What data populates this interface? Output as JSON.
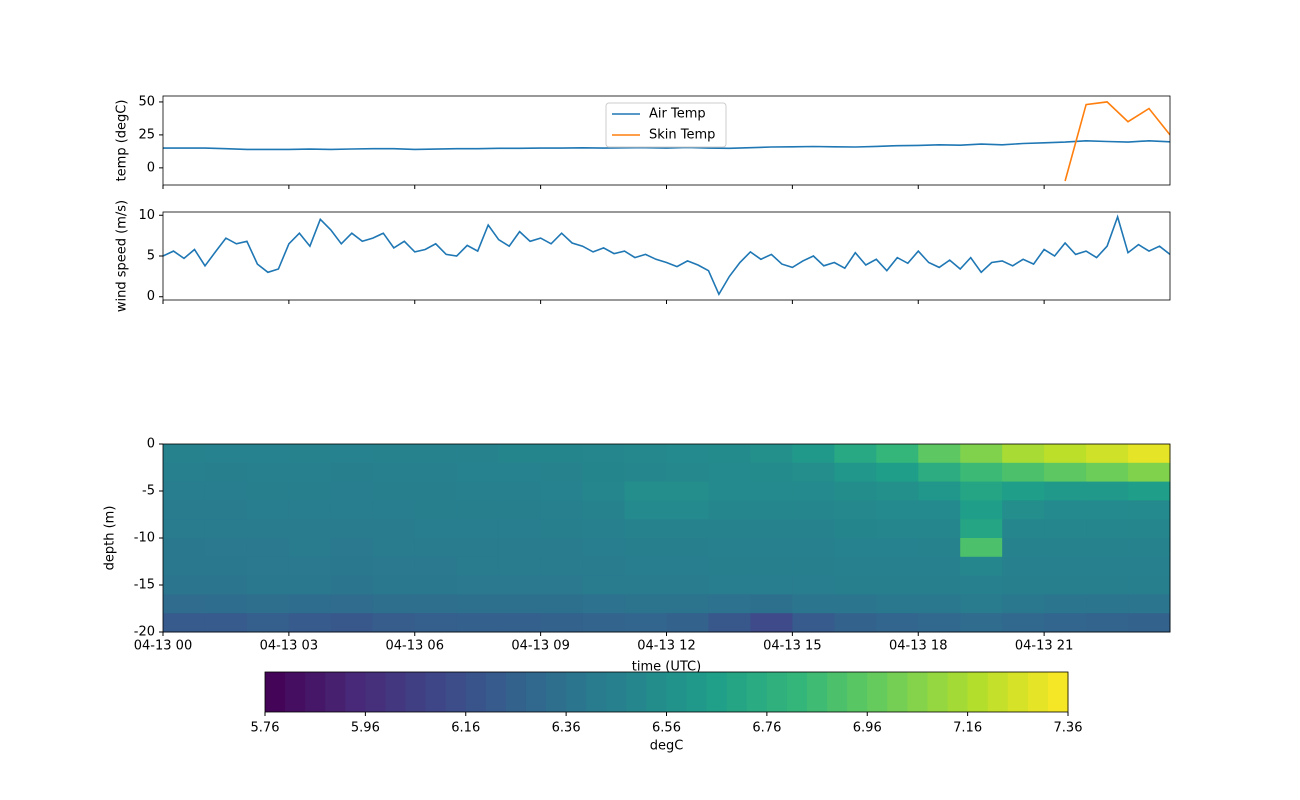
{
  "chart_data": [
    {
      "type": "line",
      "ylabel": "temp (degC)",
      "x": [
        0,
        0.5,
        1,
        1.5,
        2,
        2.5,
        3,
        3.5,
        4,
        4.5,
        5,
        5.5,
        6,
        6.5,
        7,
        7.5,
        8,
        8.5,
        9,
        9.5,
        10,
        10.5,
        11,
        11.5,
        12,
        12.5,
        13,
        13.5,
        14,
        14.5,
        15,
        15.5,
        16,
        16.5,
        17,
        17.5,
        18,
        18.5,
        19,
        19.5,
        20,
        20.5,
        21,
        21.5,
        22,
        22.5,
        23,
        23.5,
        24
      ],
      "series": [
        {
          "name": "Air Temp",
          "color": "#1f77b4",
          "values": [
            15,
            15,
            15,
            14.5,
            14,
            14,
            14,
            14.2,
            14,
            14.3,
            14.5,
            14.5,
            14,
            14.2,
            14.5,
            14.5,
            14.8,
            14.8,
            15,
            15,
            15.2,
            15,
            15.2,
            15.3,
            15,
            15.5,
            15,
            14.8,
            15.3,
            15.8,
            16,
            16.2,
            16,
            15.8,
            16.3,
            16.8,
            17,
            17.5,
            17.2,
            18,
            17.5,
            18.5,
            19,
            19.5,
            20.5,
            20,
            19.5,
            20.5,
            19.8
          ]
        },
        {
          "name": "Skin Temp",
          "color": "#ff7f0e",
          "values": [
            null,
            null,
            null,
            null,
            null,
            null,
            null,
            null,
            null,
            null,
            null,
            null,
            null,
            null,
            null,
            null,
            null,
            null,
            null,
            null,
            null,
            null,
            null,
            null,
            null,
            null,
            null,
            null,
            null,
            null,
            null,
            null,
            null,
            null,
            null,
            null,
            null,
            null,
            null,
            null,
            null,
            null,
            null,
            -10,
            48,
            50,
            35,
            45,
            25
          ]
        }
      ],
      "xlim": [
        0,
        24
      ],
      "xticks": [
        0,
        3,
        6,
        9,
        12,
        15,
        18,
        21
      ],
      "ylim": [
        -13,
        54.5
      ],
      "yticks": [
        0,
        25,
        50
      ],
      "legend": "upper center"
    },
    {
      "type": "line",
      "ylabel": "wind speed (m/s)",
      "x": [
        0,
        0.25,
        0.5,
        0.75,
        1,
        1.25,
        1.5,
        1.75,
        2,
        2.25,
        2.5,
        2.75,
        3,
        3.25,
        3.5,
        3.75,
        4,
        4.25,
        4.5,
        4.75,
        5,
        5.25,
        5.5,
        5.75,
        6,
        6.25,
        6.5,
        6.75,
        7,
        7.25,
        7.5,
        7.75,
        8,
        8.25,
        8.5,
        8.75,
        9,
        9.25,
        9.5,
        9.75,
        10,
        10.25,
        10.5,
        10.75,
        11,
        11.25,
        11.5,
        11.75,
        12,
        12.25,
        12.5,
        12.75,
        13,
        13.25,
        13.5,
        13.75,
        14,
        14.25,
        14.5,
        14.75,
        15,
        15.25,
        15.5,
        15.75,
        16,
        16.25,
        16.5,
        16.75,
        17,
        17.25,
        17.5,
        17.75,
        18,
        18.25,
        18.5,
        18.75,
        19,
        19.25,
        19.5,
        19.75,
        20,
        20.25,
        20.5,
        20.75,
        21,
        21.25,
        21.5,
        21.75,
        22,
        22.25,
        22.5,
        22.75,
        23,
        23.25,
        23.5,
        23.75,
        24
      ],
      "series": [
        {
          "name": "wind speed",
          "color": "#1f77b4",
          "values": [
            5.0,
            5.6,
            4.7,
            5.8,
            3.8,
            5.5,
            7.2,
            6.5,
            6.8,
            4.0,
            3.0,
            3.4,
            6.5,
            7.8,
            6.2,
            9.5,
            8.2,
            6.5,
            7.8,
            6.8,
            7.2,
            7.8,
            6.0,
            6.8,
            5.5,
            5.8,
            6.5,
            5.2,
            5.0,
            6.3,
            5.6,
            8.8,
            7.0,
            6.2,
            8.0,
            6.8,
            7.2,
            6.5,
            7.8,
            6.6,
            6.2,
            5.5,
            6.0,
            5.3,
            5.6,
            4.8,
            5.2,
            4.6,
            4.2,
            3.7,
            4.4,
            3.9,
            3.2,
            0.3,
            2.5,
            4.2,
            5.5,
            4.6,
            5.2,
            4.0,
            3.6,
            4.4,
            5.0,
            3.8,
            4.2,
            3.5,
            5.4,
            3.9,
            4.6,
            3.2,
            4.8,
            4.1,
            5.6,
            4.2,
            3.6,
            4.5,
            3.4,
            4.8,
            3.0,
            4.2,
            4.4,
            3.8,
            4.6,
            4.0,
            5.8,
            5.0,
            6.6,
            5.2,
            5.6,
            4.8,
            6.2,
            9.8,
            5.4,
            6.4,
            5.6,
            6.2,
            5.2
          ]
        }
      ],
      "xlim": [
        0,
        24
      ],
      "xticks": [
        0,
        3,
        6,
        9,
        12,
        15,
        18,
        21
      ],
      "ylim": [
        -0.4,
        10.4
      ],
      "yticks": [
        0,
        5,
        10
      ]
    },
    {
      "type": "heatmap",
      "xlabel": "time (UTC)",
      "ylabel": "depth (m)",
      "x_edges": [
        0,
        1,
        2,
        3,
        4,
        5,
        6,
        7,
        8,
        9,
        10,
        11,
        12,
        13,
        14,
        15,
        16,
        17,
        18,
        19,
        20,
        21,
        22,
        23,
        24
      ],
      "y_edges": [
        0,
        -2,
        -4,
        -6,
        -8,
        -10,
        -12,
        -14,
        -16,
        -18,
        -20
      ],
      "z": [
        [
          6.48,
          6.47,
          6.47,
          6.48,
          6.47,
          6.48,
          6.48,
          6.48,
          6.49,
          6.49,
          6.5,
          6.51,
          6.52,
          6.53,
          6.56,
          6.62,
          6.72,
          6.82,
          6.95,
          7.05,
          7.15,
          7.2,
          7.25,
          7.3
        ],
        [
          6.46,
          6.45,
          6.46,
          6.46,
          6.45,
          6.46,
          6.46,
          6.47,
          6.47,
          6.48,
          6.49,
          6.5,
          6.51,
          6.52,
          6.53,
          6.55,
          6.6,
          6.65,
          6.75,
          6.85,
          6.9,
          6.95,
          7.0,
          7.05
        ],
        [
          6.44,
          6.44,
          6.45,
          6.45,
          6.44,
          6.45,
          6.45,
          6.46,
          6.46,
          6.47,
          6.5,
          6.55,
          6.55,
          6.52,
          6.52,
          6.52,
          6.54,
          6.56,
          6.6,
          6.7,
          6.65,
          6.62,
          6.62,
          6.65
        ],
        [
          6.43,
          6.43,
          6.44,
          6.44,
          6.44,
          6.44,
          6.45,
          6.45,
          6.45,
          6.46,
          6.48,
          6.52,
          6.52,
          6.5,
          6.5,
          6.5,
          6.51,
          6.52,
          6.52,
          6.65,
          6.55,
          6.52,
          6.52,
          6.52
        ],
        [
          6.42,
          6.42,
          6.43,
          6.43,
          6.43,
          6.43,
          6.44,
          6.44,
          6.44,
          6.45,
          6.46,
          6.48,
          6.48,
          6.48,
          6.48,
          6.48,
          6.49,
          6.5,
          6.5,
          6.7,
          6.5,
          6.5,
          6.5,
          6.5
        ],
        [
          6.4,
          6.41,
          6.41,
          6.42,
          6.41,
          6.42,
          6.42,
          6.42,
          6.43,
          6.43,
          6.44,
          6.45,
          6.45,
          6.46,
          6.46,
          6.46,
          6.47,
          6.47,
          6.48,
          6.9,
          6.48,
          6.48,
          6.48,
          6.48
        ],
        [
          6.4,
          6.4,
          6.41,
          6.41,
          6.4,
          6.41,
          6.41,
          6.42,
          6.42,
          6.42,
          6.43,
          6.44,
          6.44,
          6.45,
          6.45,
          6.45,
          6.46,
          6.46,
          6.46,
          6.5,
          6.46,
          6.46,
          6.46,
          6.46
        ],
        [
          6.39,
          6.39,
          6.4,
          6.4,
          6.39,
          6.4,
          6.4,
          6.41,
          6.41,
          6.41,
          6.42,
          6.43,
          6.43,
          6.44,
          6.44,
          6.44,
          6.45,
          6.45,
          6.45,
          6.46,
          6.45,
          6.45,
          6.45,
          6.45
        ],
        [
          6.32,
          6.33,
          6.34,
          6.33,
          6.32,
          6.34,
          6.34,
          6.35,
          6.35,
          6.35,
          6.36,
          6.37,
          6.37,
          6.36,
          6.35,
          6.38,
          6.39,
          6.4,
          6.4,
          6.42,
          6.4,
          6.39,
          6.38,
          6.38
        ],
        [
          6.22,
          6.22,
          6.24,
          6.22,
          6.2,
          6.23,
          6.24,
          6.25,
          6.25,
          6.26,
          6.27,
          6.28,
          6.26,
          6.2,
          6.12,
          6.22,
          6.26,
          6.28,
          6.3,
          6.32,
          6.3,
          6.28,
          6.27,
          6.26
        ]
      ],
      "xlim": [
        0,
        24
      ],
      "xticks": [
        {
          "value": 0,
          "label": "04-13 00"
        },
        {
          "value": 3,
          "label": "04-13 03"
        },
        {
          "value": 6,
          "label": "04-13 06"
        },
        {
          "value": 9,
          "label": "04-13 09"
        },
        {
          "value": 12,
          "label": "04-13 12"
        },
        {
          "value": 15,
          "label": "04-13 15"
        },
        {
          "value": 18,
          "label": "04-13 18"
        },
        {
          "value": 21,
          "label": "04-13 21"
        }
      ],
      "ylim": [
        -20,
        0
      ],
      "yticks": [
        0,
        -5,
        -10,
        -15,
        -20
      ],
      "colormap": [
        "#440154",
        "#482878",
        "#3e4989",
        "#31688e",
        "#26828e",
        "#1f9e89",
        "#35b779",
        "#6ece58",
        "#b5de2b",
        "#fde725"
      ],
      "colorbar": {
        "label": "degC",
        "lim": [
          5.76,
          7.36
        ],
        "ticks": [
          5.76,
          5.96,
          6.16,
          6.36,
          6.56,
          6.76,
          6.96,
          7.16,
          7.36
        ]
      }
    }
  ]
}
